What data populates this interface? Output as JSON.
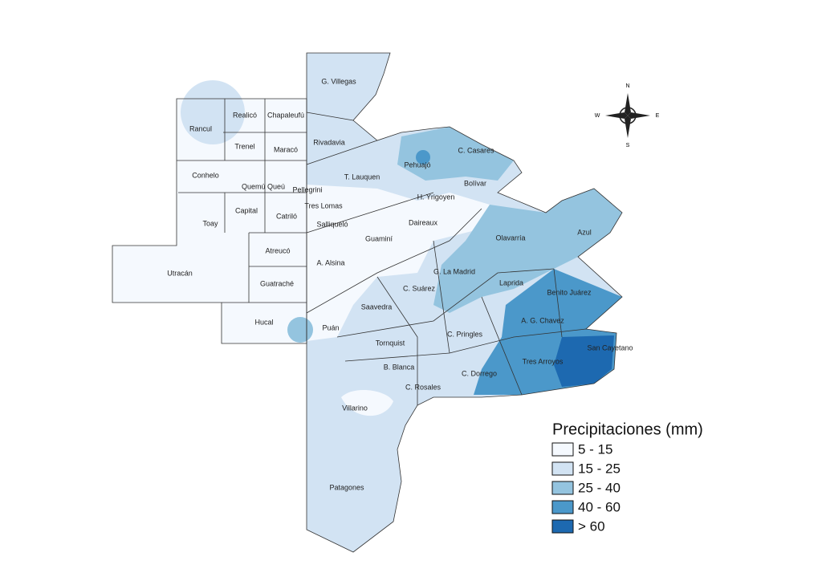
{
  "legend": {
    "title": "Precipitaciones (mm)",
    "items": [
      {
        "label": "5 - 15",
        "color": "#f5f9fe"
      },
      {
        "label": "15 - 25",
        "color": "#d2e3f3"
      },
      {
        "label": "25 - 40",
        "color": "#94c4df"
      },
      {
        "label": "40 - 60",
        "color": "#4b98ca"
      },
      {
        "label": "> 60",
        "color": "#1d69b0"
      }
    ]
  },
  "compass": {
    "north": "N",
    "west": "W",
    "east": "E",
    "south": "S"
  },
  "districts": [
    "G. Villegas",
    "Realicó",
    "Chapaleufú",
    "Rancul",
    "Rivadavia",
    "Trenel",
    "Maracó",
    "C. Casares",
    "Pehuajó",
    "Conhelo",
    "T. Lauquen",
    "Quemú Queú",
    "Pellegrini",
    "Bolívar",
    "H. Yrigoyen",
    "Tres Lomas",
    "Capital",
    "Catriló",
    "Toay",
    "Daireaux",
    "Salliqueló",
    "Guaminí",
    "Olavarría",
    "Azul",
    "Atreucó",
    "A. Alsina",
    "G. La Madrid",
    "Utracán",
    "Laprida",
    "Guatraché",
    "C. Suárez",
    "Benito Juárez",
    "Saavedra",
    "Hucal",
    "A. G. Chavez",
    "Puán",
    "C. Pringles",
    "Tornquist",
    "San Cayetano",
    "Tres Arroyos",
    "B. Blanca",
    "C. Dorrego",
    "C. Rosales",
    "Villarino",
    "Patagones"
  ]
}
